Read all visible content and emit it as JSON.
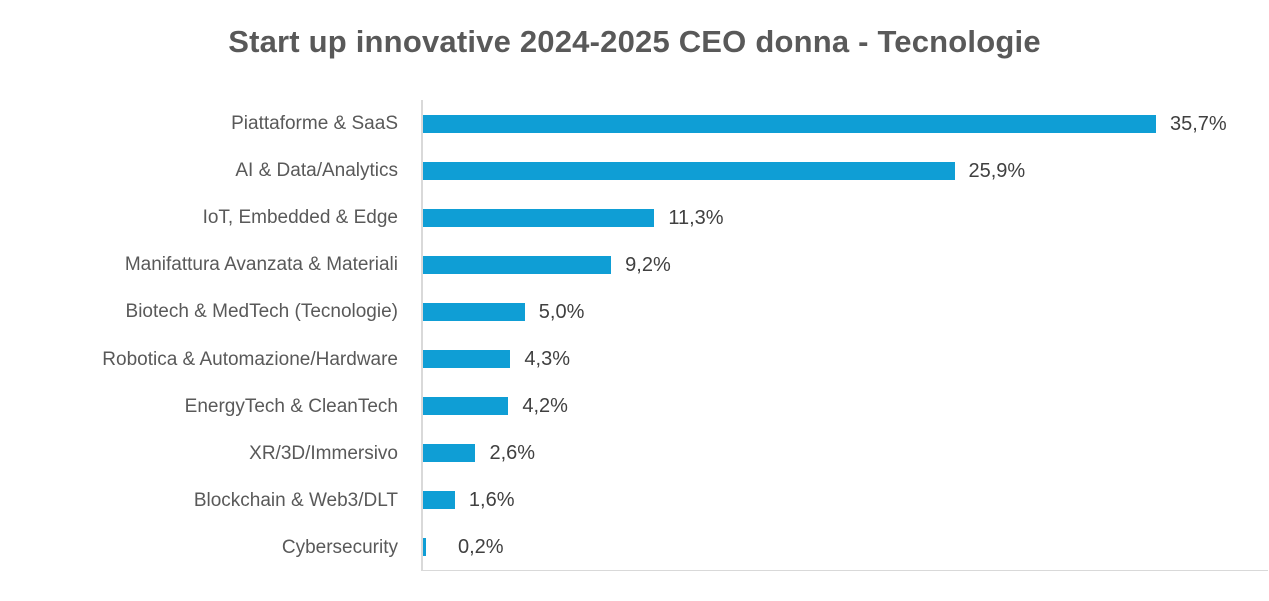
{
  "chart_data": {
    "type": "bar",
    "orientation": "horizontal",
    "title": "Start up innovative 2024-2025 CEO donna - Tecnologie",
    "categories": [
      "Piattaforme & SaaS",
      "AI & Data/Analytics",
      "IoT, Embedded & Edge",
      "Manifattura Avanzata & Materiali",
      "Biotech & MedTech (Tecnologie)",
      "Robotica & Automazione/Hardware",
      "EnergyTech & CleanTech",
      "XR/3D/Immersivo",
      "Blockchain & Web3/DLT",
      "Cybersecurity"
    ],
    "values": [
      35.7,
      25.9,
      11.3,
      9.2,
      5.0,
      4.3,
      4.2,
      2.6,
      1.6,
      0.2
    ],
    "value_labels": [
      "35,7%",
      "25,9%",
      "11,3%",
      "9,2%",
      "5,0%",
      "4,3%",
      "4,2%",
      "2,6%",
      "1,6%",
      "0,2%"
    ],
    "unit": "%",
    "decimal_separator": ",",
    "xlim": [
      0,
      41.2
    ],
    "grid": false,
    "legend": false,
    "data_labels": "outside-end",
    "colors": {
      "bar": "#0F9ED5",
      "title_text": "#595959",
      "category_text": "#595959",
      "value_text": "#404040",
      "axis_line": "#D9D9D9",
      "background": "#FFFFFF"
    }
  }
}
